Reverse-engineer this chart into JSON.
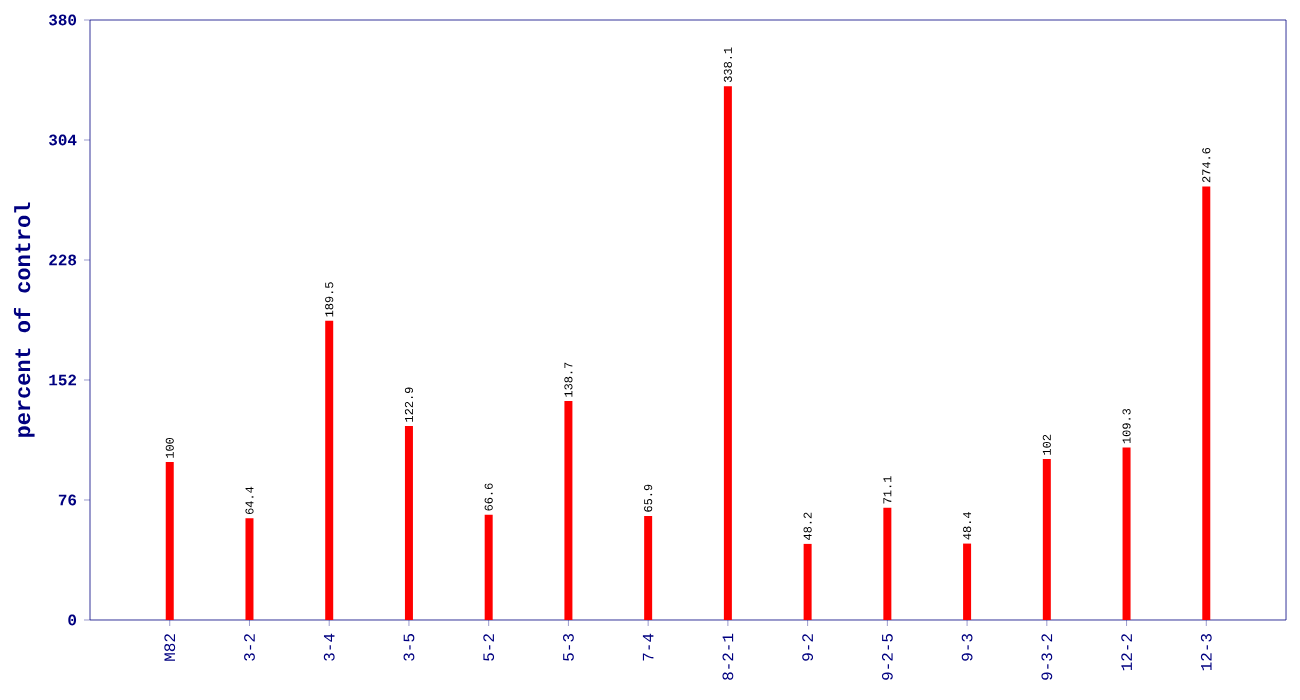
{
  "chart_data": {
    "type": "bar",
    "ylabel": "percent of control",
    "categories": [
      "M82",
      "3-2",
      "3-4",
      "3-5",
      "5-2",
      "5-3",
      "7-4",
      "8-2-1",
      "9-2",
      "9-2-5",
      "9-3",
      "9-3-2",
      "12-2",
      "12-3"
    ],
    "values": [
      100,
      64.4,
      189.5,
      122.9,
      66.6,
      138.7,
      65.9,
      338.1,
      48.2,
      71.1,
      48.4,
      102,
      109.3,
      274.6
    ],
    "color": "#ff0000",
    "ylim": [
      0,
      380
    ],
    "yticks": [
      0,
      76,
      152,
      228,
      304,
      380
    ],
    "data_labels": true,
    "grid": false
  }
}
